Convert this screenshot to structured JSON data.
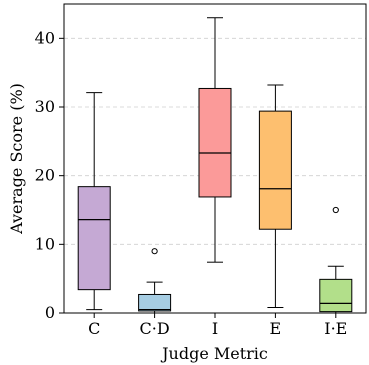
{
  "chart_data": {
    "type": "box",
    "title": "",
    "xlabel": "Judge Metric",
    "ylabel": "Average Score (%)",
    "ylim": [
      0,
      45
    ],
    "yticks": [
      0,
      10,
      20,
      30,
      40
    ],
    "grid": "horizontal dashed",
    "categories": [
      "C",
      "C·D",
      "I",
      "E",
      "I·E"
    ],
    "boxes": [
      {
        "category": "C",
        "whisker_low": 0.5,
        "q1": 3.4,
        "median": 13.6,
        "q3": 18.4,
        "whisker_high": 32.1,
        "outliers": [],
        "color": "#c5a9d4"
      },
      {
        "category": "C·D",
        "whisker_low": 0.0,
        "q1": 0.3,
        "median": 0.5,
        "q3": 2.7,
        "whisker_high": 4.5,
        "outliers": [
          9.0
        ],
        "color": "#a6cde3"
      },
      {
        "category": "I",
        "whisker_low": 7.4,
        "q1": 16.9,
        "median": 23.3,
        "q3": 32.7,
        "whisker_high": 43.0,
        "outliers": [],
        "color": "#fb9a99"
      },
      {
        "category": "E",
        "whisker_low": 0.8,
        "q1": 12.2,
        "median": 18.1,
        "q3": 29.4,
        "whisker_high": 33.2,
        "outliers": [],
        "color": "#fdbf6f"
      },
      {
        "category": "I·E",
        "whisker_low": 0.0,
        "q1": 0.2,
        "median": 1.4,
        "q3": 4.9,
        "whisker_high": 6.8,
        "outliers": [
          15.0
        ],
        "color": "#b2df8a"
      }
    ]
  }
}
